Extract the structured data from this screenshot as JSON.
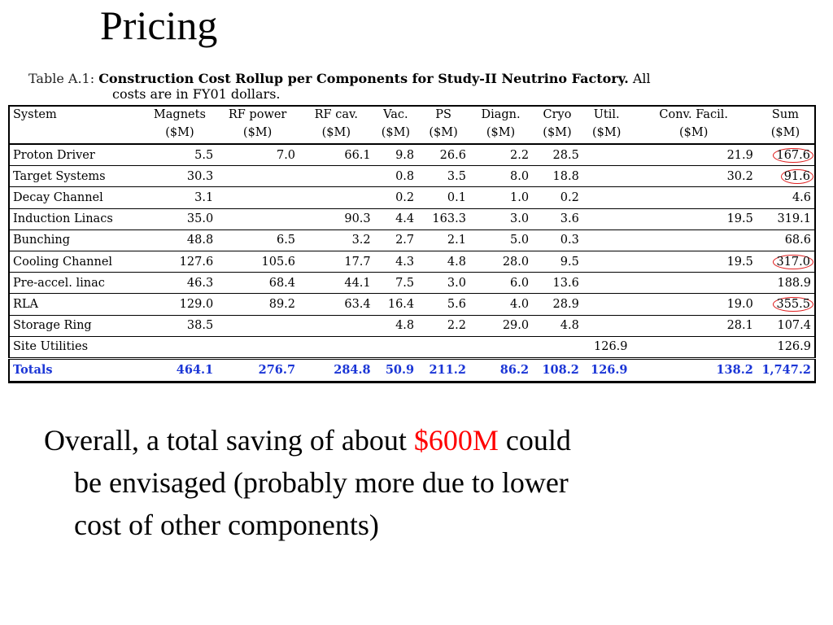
{
  "slide": {
    "title": "Pricing"
  },
  "table": {
    "caption_label": "Table A.1:",
    "caption_bold": "Construction Cost Rollup per Components for Study-II Neutrino Factory.",
    "caption_rest": "All",
    "caption_line2": "costs are in FY01 dollars.",
    "headers": [
      "System",
      "Magnets",
      "RF power",
      "RF cav.",
      "Vac.",
      "PS",
      "Diagn.",
      "Cryo",
      "Util.",
      "Conv. Facil.",
      "Sum"
    ],
    "units": [
      "",
      "($M)",
      "($M)",
      "($M)",
      "($M)",
      "($M)",
      "($M)",
      "($M)",
      "($M)",
      "($M)",
      "($M)"
    ],
    "rows": [
      [
        "Proton Driver",
        "5.5",
        "7.0",
        "66.1",
        "9.8",
        "26.6",
        "2.2",
        "28.5",
        "",
        "21.9",
        "167.6"
      ],
      [
        "Target Systems",
        "30.3",
        "",
        "",
        "0.8",
        "3.5",
        "8.0",
        "18.8",
        "",
        "30.2",
        "91.6"
      ],
      [
        "Decay Channel",
        "3.1",
        "",
        "",
        "0.2",
        "0.1",
        "1.0",
        "0.2",
        "",
        "",
        "4.6"
      ],
      [
        "Induction Linacs",
        "35.0",
        "",
        "90.3",
        "4.4",
        "163.3",
        "3.0",
        "3.6",
        "",
        "19.5",
        "319.1"
      ],
      [
        "Bunching",
        "48.8",
        "6.5",
        "3.2",
        "2.7",
        "2.1",
        "5.0",
        "0.3",
        "",
        "",
        "68.6"
      ],
      [
        "Cooling Channel",
        "127.6",
        "105.6",
        "17.7",
        "4.3",
        "4.8",
        "28.0",
        "9.5",
        "",
        "19.5",
        "317.0"
      ],
      [
        "Pre-accel. linac",
        "46.3",
        "68.4",
        "44.1",
        "7.5",
        "3.0",
        "6.0",
        "13.6",
        "",
        "",
        "188.9"
      ],
      [
        "RLA",
        "129.0",
        "89.2",
        "63.4",
        "16.4",
        "5.6",
        "4.0",
        "28.9",
        "",
        "19.0",
        "355.5"
      ],
      [
        "Storage Ring",
        "38.5",
        "",
        "",
        "4.8",
        "2.2",
        "29.0",
        "4.8",
        "",
        "28.1",
        "107.4"
      ],
      [
        "Site Utilities",
        "",
        "",
        "",
        "",
        "",
        "",
        "",
        "126.9",
        "",
        "126.9"
      ]
    ],
    "totals": [
      "Totals",
      "464.1",
      "276.7",
      "284.8",
      "50.9",
      "211.2",
      "86.2",
      "108.2",
      "126.9",
      "138.2",
      "1,747.2"
    ],
    "circled_rows": [
      0,
      1,
      5,
      7
    ],
    "circle_color": "#e02020",
    "totals_color": "#1a35d6"
  },
  "body": {
    "line1_pre": "Overall, a total saving of about ",
    "line1_highlight": "$600M",
    "line1_post": " could",
    "line2": "be envisaged (probably more due to lower",
    "line3": "cost of other components)",
    "highlight_color": "#ff0000"
  }
}
